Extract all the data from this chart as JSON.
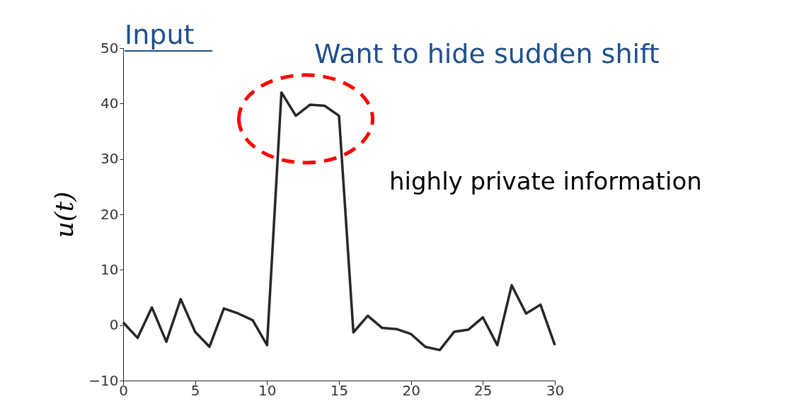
{
  "chart_data": {
    "type": "line",
    "title": "Input",
    "ylabel": "u(t)",
    "x": [
      0,
      1,
      2,
      3,
      4,
      5,
      6,
      7,
      8,
      9,
      10,
      11,
      12,
      13,
      14,
      15,
      16,
      17,
      18,
      19,
      20,
      21,
      22,
      23,
      24,
      25,
      26,
      27,
      28,
      29,
      30
    ],
    "series": [
      {
        "color": "#262626",
        "values": [
          0.5,
          -2.3,
          3.2,
          -3,
          4.7,
          -1.2,
          -3.9,
          3,
          2.1,
          0.9,
          -3.6,
          42,
          37.8,
          39.8,
          39.6,
          37.8,
          -1.3,
          1.7,
          -0.5,
          -0.7,
          -1.6,
          -3.9,
          -4.5,
          -1.2,
          -0.8,
          1.4,
          -3.6,
          7.2,
          2.1,
          3.7,
          -3.6
        ]
      }
    ],
    "xlim": [
      0,
      30
    ],
    "xticks": [
      0,
      5,
      10,
      15,
      20,
      25,
      30
    ],
    "ylim": [
      -10,
      50
    ],
    "yticks": [
      -10,
      0,
      10,
      20,
      30,
      40,
      50
    ],
    "grid": false,
    "legend": false,
    "marker": "none",
    "line_style": "solid",
    "annotations": [
      "Want to hide sudden shift",
      "highly private information"
    ]
  }
}
